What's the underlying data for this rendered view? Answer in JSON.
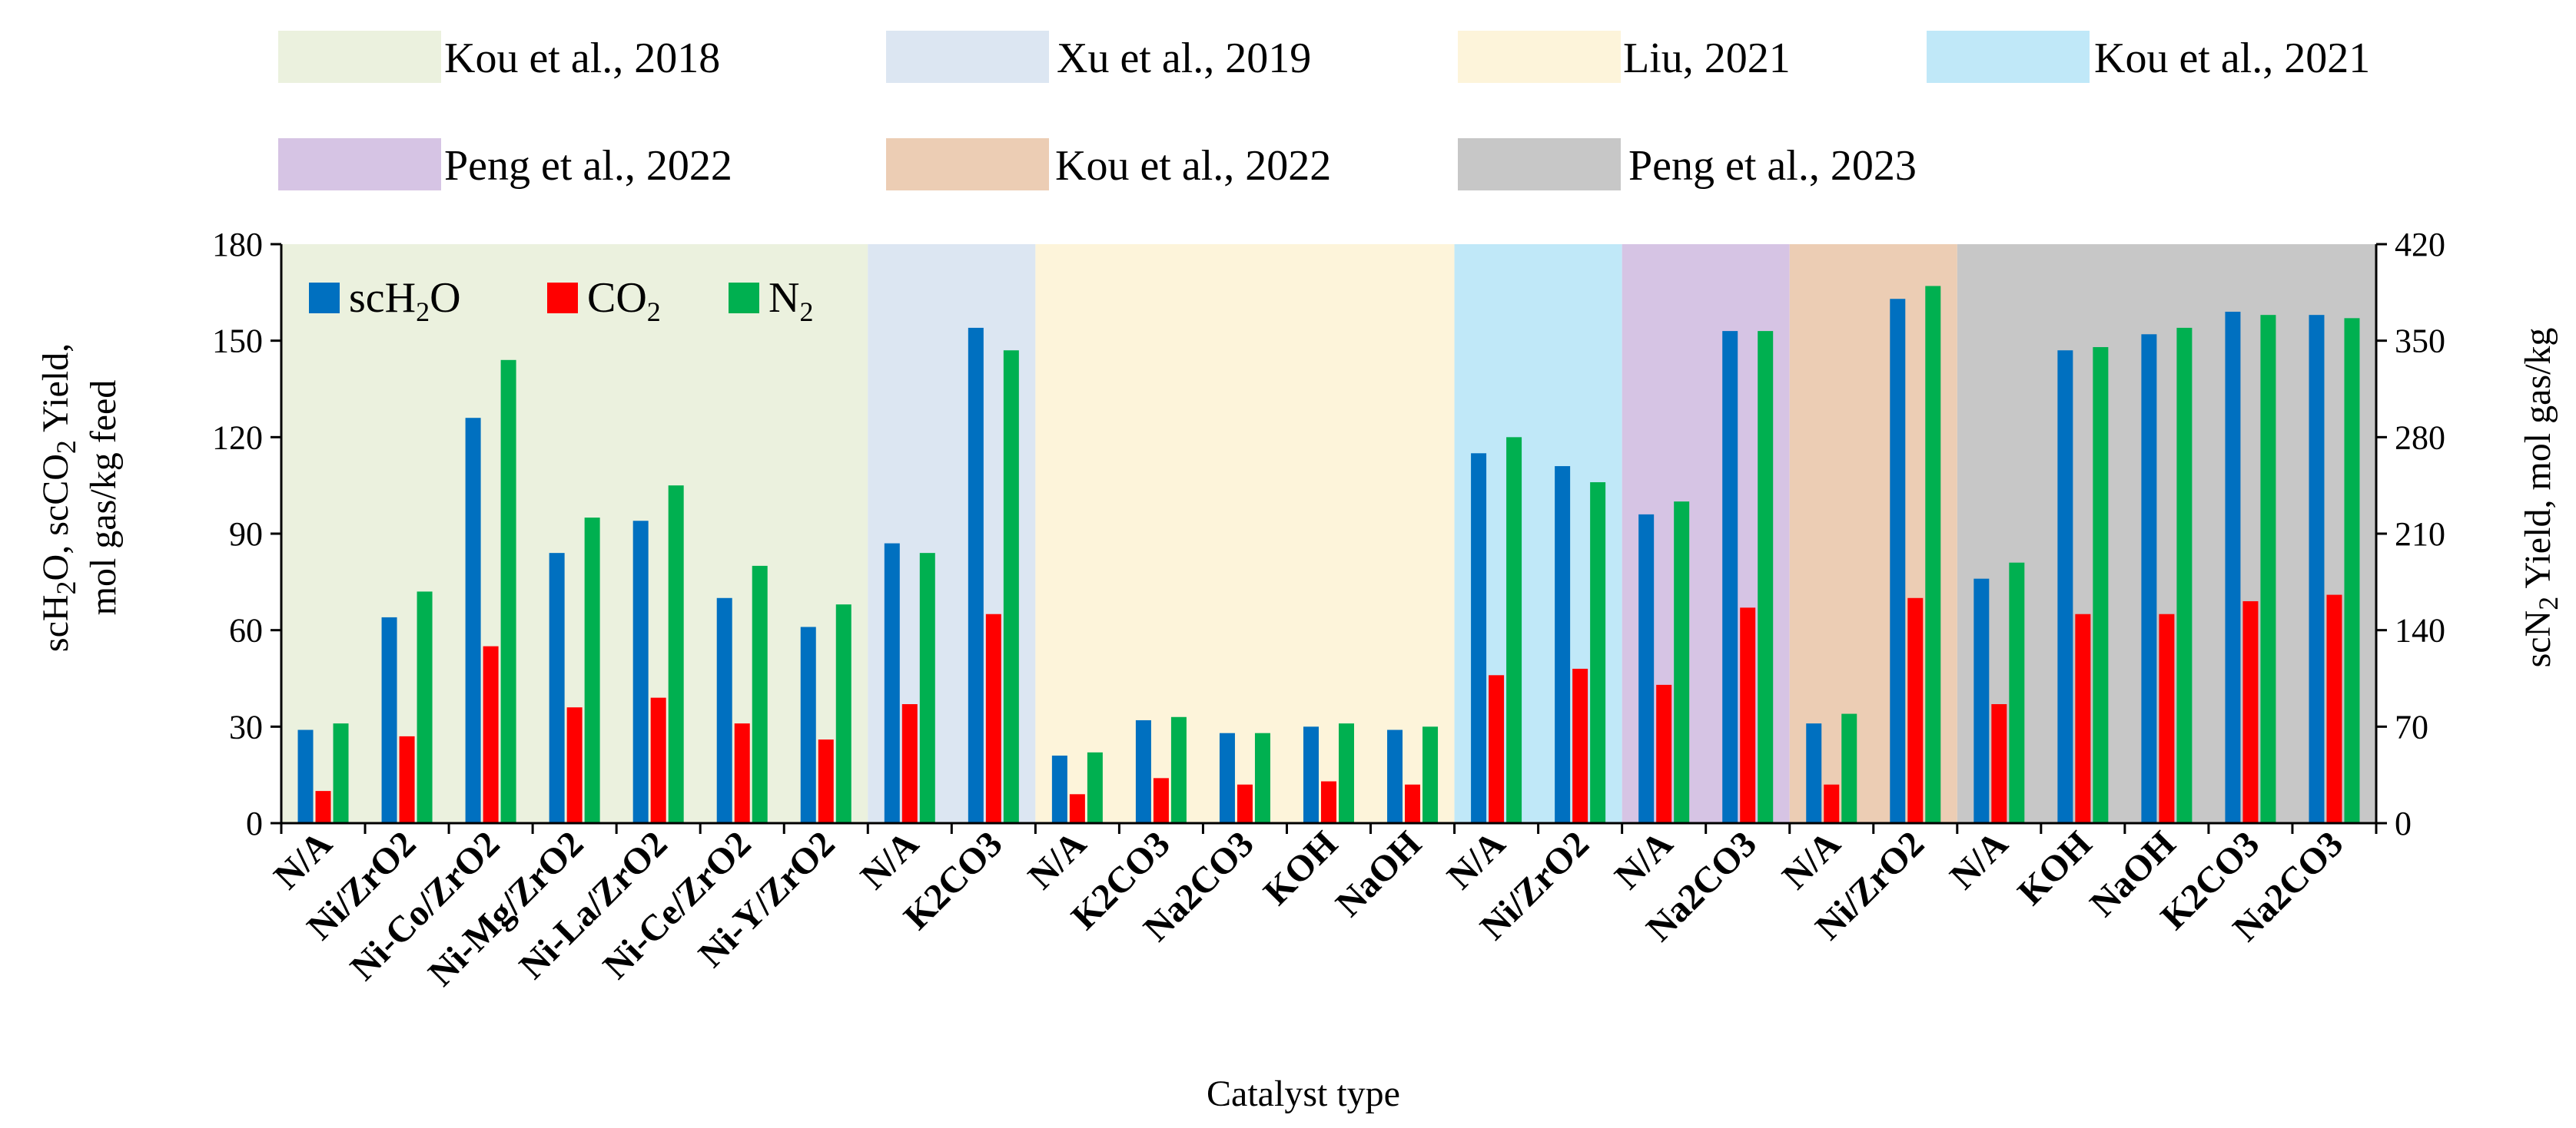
{
  "chart_data": {
    "type": "bar",
    "xlabel": "Catalyst type",
    "ylabel_left": {
      "lines": [
        "scH2O, scCO2 Yield,",
        "mol gas/kg feed"
      ]
    },
    "ylabel_right": "scN2 Yield, mol gas/kg",
    "ylim_left": [
      0,
      180
    ],
    "ylim_right": [
      0,
      420
    ],
    "yticks_left": [
      "0",
      "30",
      "60",
      "90",
      "120",
      "150",
      "180"
    ],
    "yticks_right": [
      "0",
      "70",
      "140",
      "210",
      "280",
      "350",
      "420"
    ],
    "categories": [
      "N/A",
      "Ni/ZrO2",
      "Ni-Co/ZrO2",
      "Ni-Mg/ZrO2",
      "Ni-La/ZrO2",
      "Ni-Ce/ZrO2",
      "Ni-Y/ZrO2",
      "N/A",
      "K2CO3",
      "N/A",
      "K2CO3",
      "Na2CO3",
      "KOH",
      "NaOH",
      "N/A",
      "Ni/ZrO2",
      "N/A",
      "Na2CO3",
      "N/A",
      "Ni/ZrO2",
      "N/A",
      "KOH",
      "NaOH",
      "K2CO3",
      "Na2CO3"
    ],
    "series": [
      {
        "name": "scH2O",
        "label_main": "scH",
        "label_sub": "2",
        "label_tail": "O",
        "axis": "left",
        "color": "#0070c0",
        "values": [
          29,
          64,
          126,
          84,
          94,
          70,
          61,
          87,
          154,
          21,
          32,
          28,
          30,
          29,
          115,
          111,
          96,
          153,
          31,
          163,
          76,
          147,
          152,
          159,
          158
        ]
      },
      {
        "name": "CO2",
        "label_main": "CO",
        "label_sub": "2",
        "label_tail": "",
        "axis": "left",
        "color": "#ff0000",
        "values": [
          10,
          27,
          55,
          36,
          39,
          31,
          26,
          37,
          65,
          9,
          14,
          12,
          13,
          12,
          46,
          48,
          43,
          67,
          12,
          70,
          37,
          65,
          65,
          69,
          71
        ]
      },
      {
        "name": "N2",
        "label_main": "N",
        "label_sub": "2",
        "label_tail": "",
        "axis": "left",
        "color": "#00b050",
        "values": [
          31,
          72,
          144,
          95,
          105,
          80,
          68,
          84,
          147,
          22,
          33,
          28,
          31,
          30,
          120,
          106,
          100,
          153,
          34,
          167,
          81,
          148,
          154,
          158,
          157
        ]
      }
    ],
    "studies": [
      {
        "label": "Kou et al., 2018",
        "color": "#ebf1de",
        "first": 0,
        "last": 6
      },
      {
        "label": "Xu et al., 2019",
        "color": "#dce6f2",
        "first": 7,
        "last": 8
      },
      {
        "label": "Liu, 2021",
        "color": "#fdf4da",
        "first": 9,
        "last": 13
      },
      {
        "label": "Kou et al., 2021",
        "color": "#c0e8f8",
        "first": 14,
        "last": 15
      },
      {
        "label": "Peng et al., 2022",
        "color": "#d6c4e4",
        "first": 16,
        "last": 17
      },
      {
        "label": "Kou et al., 2022",
        "color": "#eccdb4",
        "first": 18,
        "last": 19
      },
      {
        "label": "Peng et al., 2023",
        "color": "#c7c7c7",
        "first": 20,
        "last": 24
      }
    ]
  }
}
